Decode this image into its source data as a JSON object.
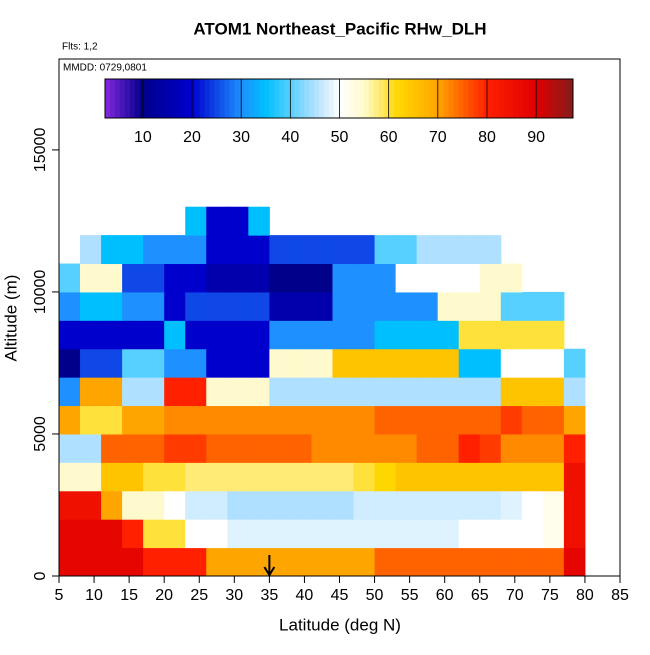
{
  "chart_data": {
    "type": "heatmap",
    "title": "ATOM1 Northeast_Pacific RHw_DLH",
    "subtitle": "Flts: 1,2",
    "annotation": "MMDD: 0729,0801",
    "xlabel": "Latitude (deg N)",
    "ylabel": "Altitude (m)",
    "xlim": [
      5,
      85
    ],
    "xticks": [
      5,
      10,
      15,
      20,
      25,
      30,
      35,
      40,
      45,
      50,
      55,
      60,
      65,
      70,
      75,
      80,
      85
    ],
    "ylim": [
      0,
      18200
    ],
    "yticks": [
      0,
      5000,
      10000,
      15000
    ],
    "xbins": [
      5,
      8,
      11,
      14,
      17,
      20,
      23,
      26,
      29,
      32,
      35,
      38,
      41,
      44,
      47,
      50,
      53,
      56,
      59,
      62,
      65,
      68,
      71,
      74,
      77,
      80
    ],
    "ybins": [
      0,
      1000,
      2000,
      3000,
      4000,
      5000,
      6000,
      7000,
      8000,
      9000,
      10000,
      11000,
      12000,
      13000
    ],
    "values": [
      [
        88,
        88,
        88,
        88,
        80,
        80,
        80,
        70,
        70,
        70,
        70,
        70,
        70,
        70,
        70,
        75,
        75,
        75,
        75,
        75,
        75,
        75,
        75,
        75,
        88
      ],
      [
        88,
        88,
        88,
        80,
        60,
        60,
        50,
        50,
        48,
        48,
        48,
        48,
        48,
        48,
        48,
        48,
        48,
        48,
        48,
        50,
        50,
        50,
        50,
        52,
        85
      ],
      [
        85,
        85,
        70,
        55,
        55,
        50,
        47,
        47,
        45,
        45,
        45,
        45,
        45,
        45,
        47,
        47,
        47,
        47,
        47,
        47,
        47,
        48,
        50,
        52,
        85
      ],
      [
        55,
        55,
        65,
        65,
        60,
        60,
        58,
        58,
        58,
        58,
        58,
        58,
        58,
        58,
        60,
        62,
        65,
        65,
        65,
        65,
        65,
        65,
        65,
        65,
        85
      ],
      [
        45,
        45,
        75,
        75,
        75,
        78,
        78,
        75,
        75,
        75,
        75,
        75,
        72,
        72,
        72,
        72,
        72,
        75,
        75,
        80,
        78,
        72,
        72,
        72,
        80
      ],
      [
        70,
        60,
        60,
        70,
        70,
        72,
        72,
        72,
        72,
        72,
        72,
        72,
        72,
        72,
        72,
        75,
        75,
        75,
        75,
        75,
        75,
        78,
        75,
        75,
        70
      ],
      [
        30,
        70,
        70,
        45,
        45,
        80,
        80,
        55,
        55,
        55,
        45,
        45,
        45,
        45,
        45,
        45,
        45,
        45,
        45,
        45,
        45,
        65,
        65,
        65,
        45
      ],
      [
        10,
        25,
        25,
        40,
        40,
        30,
        30,
        20,
        20,
        20,
        55,
        55,
        55,
        65,
        65,
        65,
        65,
        65,
        65,
        35,
        35,
        50,
        50,
        50,
        40
      ],
      [
        20,
        20,
        20,
        20,
        20,
        35,
        20,
        20,
        20,
        20,
        30,
        30,
        30,
        30,
        30,
        35,
        35,
        35,
        35,
        60,
        60,
        60,
        60,
        60,
        null
      ],
      [
        30,
        35,
        35,
        30,
        30,
        20,
        25,
        25,
        25,
        25,
        15,
        15,
        15,
        30,
        30,
        30,
        30,
        30,
        55,
        55,
        55,
        40,
        40,
        40,
        null
      ],
      [
        40,
        55,
        55,
        25,
        25,
        20,
        20,
        15,
        15,
        15,
        10,
        10,
        10,
        30,
        30,
        30,
        50,
        50,
        50,
        50,
        55,
        55,
        null,
        null,
        null
      ],
      [
        null,
        45,
        35,
        35,
        30,
        30,
        30,
        20,
        20,
        20,
        25,
        25,
        25,
        25,
        25,
        40,
        40,
        45,
        45,
        45,
        45,
        null,
        null,
        null,
        null
      ],
      [
        null,
        null,
        null,
        null,
        null,
        null,
        35,
        20,
        20,
        35,
        null,
        null,
        null,
        null,
        null,
        null,
        null,
        null,
        null,
        null,
        null,
        null,
        null,
        null,
        null
      ]
    ],
    "colorbar_lim": [
      2.3,
      97.5
    ],
    "colorbar_ticks": [
      10,
      20,
      30,
      40,
      50,
      60,
      70,
      80,
      90
    ],
    "colorscale": [
      [
        2,
        "#8a2be2"
      ],
      [
        10,
        "#00008b"
      ],
      [
        20,
        "#0000cd"
      ],
      [
        30,
        "#1e90ff"
      ],
      [
        35,
        "#00bfff"
      ],
      [
        45,
        "#b0e0ff"
      ],
      [
        50,
        "#ffffff"
      ],
      [
        55,
        "#fffacd"
      ],
      [
        62,
        "#ffd700"
      ],
      [
        70,
        "#ffa500"
      ],
      [
        80,
        "#ff2000"
      ],
      [
        90,
        "#e00000"
      ],
      [
        97,
        "#8b1a1a"
      ]
    ],
    "arrow_x": 35
  }
}
